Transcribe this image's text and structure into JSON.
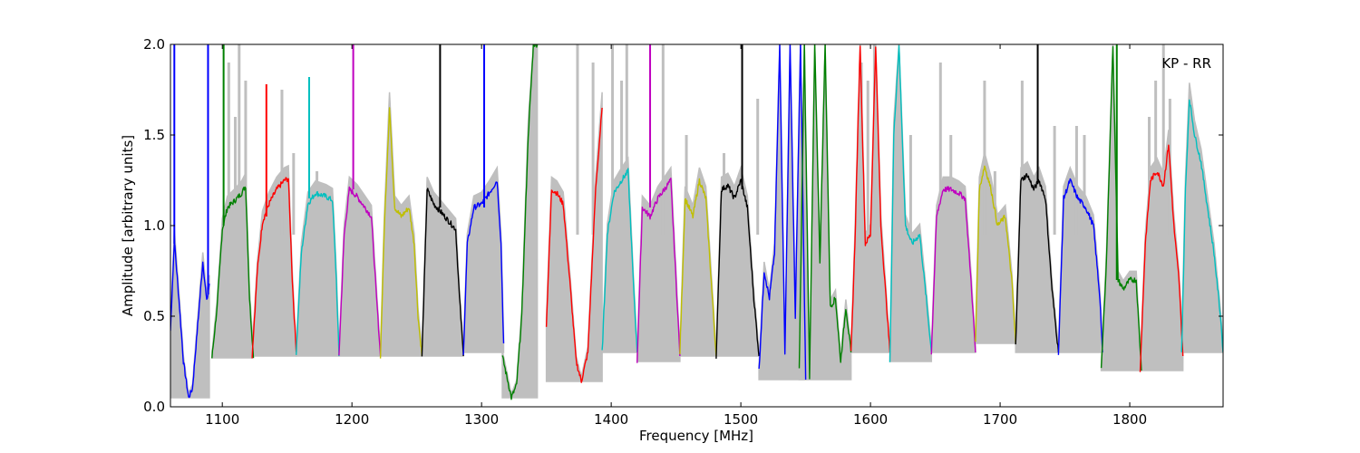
{
  "chart_data": {
    "type": "line",
    "title": "",
    "xlabel": "Frequency [MHz]",
    "ylabel": "Amplitude [arbitrary units]",
    "annotation": "KP - RR",
    "xlim": [
      1060,
      1872
    ],
    "ylim": [
      0.0,
      2.0
    ],
    "xticks": [
      1100,
      1200,
      1300,
      1400,
      1500,
      1600,
      1700,
      1800
    ],
    "xtick_labels": [
      "1100",
      "1200",
      "1300",
      "1400",
      "1500",
      "1600",
      "1700",
      "1800"
    ],
    "yticks": [
      0.0,
      0.5,
      1.0,
      1.5,
      2.0
    ],
    "ytick_labels": [
      "0.0",
      "0.5",
      "1.0",
      "1.5",
      "2.0"
    ],
    "grid": false,
    "legend": "none",
    "background_series_color": "#bfbfbf",
    "subbands": [
      {
        "x": [
          1060,
          1063,
          1067,
          1070,
          1074,
          1077,
          1081,
          1085,
          1088,
          1090
        ],
        "y": [
          0.42,
          0.92,
          0.55,
          0.25,
          0.05,
          0.1,
          0.45,
          0.8,
          0.58,
          0.68
        ],
        "color": "#0000ff"
      },
      {
        "x": [
          1092,
          1096,
          1100,
          1104,
          1110,
          1115,
          1118,
          1121,
          1124
        ],
        "y": [
          0.27,
          0.55,
          0.98,
          1.1,
          1.14,
          1.18,
          1.22,
          0.6,
          0.27
        ],
        "color": "#008000"
      },
      {
        "x": [
          1123,
          1127,
          1131,
          1136,
          1142,
          1148,
          1151,
          1154,
          1157
        ],
        "y": [
          0.28,
          0.75,
          1.02,
          1.12,
          1.2,
          1.25,
          1.26,
          0.7,
          0.3
        ],
        "color": "#ff0000"
      },
      {
        "x": [
          1157,
          1161,
          1166,
          1172,
          1180,
          1185,
          1188,
          1190
        ],
        "y": [
          0.3,
          0.85,
          1.12,
          1.18,
          1.16,
          1.14,
          0.7,
          0.28
        ],
        "color": "#00bfbf"
      },
      {
        "x": [
          1190,
          1194,
          1198,
          1204,
          1210,
          1215,
          1219,
          1222
        ],
        "y": [
          0.28,
          0.95,
          1.2,
          1.16,
          1.1,
          1.05,
          0.6,
          0.28
        ],
        "color": "#bf00bf"
      },
      {
        "x": [
          1222,
          1225,
          1229,
          1233,
          1238,
          1244,
          1248,
          1251,
          1254
        ],
        "y": [
          0.28,
          1.0,
          1.65,
          1.1,
          1.05,
          1.1,
          0.9,
          0.5,
          0.28
        ],
        "color": "#bfbf00"
      },
      {
        "x": [
          1254,
          1258,
          1263,
          1268,
          1274,
          1280,
          1283,
          1286
        ],
        "y": [
          0.28,
          1.2,
          1.12,
          1.08,
          1.03,
          0.98,
          0.6,
          0.28
        ],
        "color": "#000000"
      },
      {
        "x": [
          1286,
          1289,
          1294,
          1300,
          1306,
          1312,
          1315,
          1317
        ],
        "y": [
          0.3,
          0.9,
          1.1,
          1.12,
          1.18,
          1.25,
          0.9,
          0.35
        ],
        "color": "#0000ff"
      },
      {
        "x": [
          1316,
          1320,
          1323,
          1327,
          1331,
          1336,
          1340,
          1343
        ],
        "y": [
          0.28,
          0.15,
          0.05,
          0.12,
          0.5,
          1.5,
          2.0,
          2.0
        ],
        "color": "#008000"
      },
      {
        "x": [
          1350,
          1354,
          1358,
          1363,
          1368,
          1373,
          1377,
          1382,
          1388,
          1393
        ],
        "y": [
          0.45,
          1.2,
          1.18,
          1.12,
          0.7,
          0.25,
          0.14,
          0.3,
          1.2,
          1.65
        ],
        "color": "#ff0000"
      },
      {
        "x": [
          1393,
          1397,
          1402,
          1408,
          1413,
          1417,
          1420
        ],
        "y": [
          0.3,
          0.95,
          1.18,
          1.25,
          1.3,
          0.7,
          0.3
        ],
        "color": "#00bfbf"
      },
      {
        "x": [
          1420,
          1424,
          1430,
          1436,
          1441,
          1446,
          1450,
          1453
        ],
        "y": [
          0.25,
          1.1,
          1.05,
          1.15,
          1.2,
          1.25,
          0.7,
          0.28
        ],
        "color": "#bf00bf"
      },
      {
        "x": [
          1453,
          1457,
          1463,
          1468,
          1473,
          1478,
          1481
        ],
        "y": [
          0.3,
          1.15,
          1.05,
          1.25,
          1.15,
          0.6,
          0.28
        ],
        "color": "#bfbf00"
      },
      {
        "x": [
          1481,
          1485,
          1490,
          1495,
          1500,
          1505,
          1510,
          1514
        ],
        "y": [
          0.28,
          1.2,
          1.22,
          1.15,
          1.25,
          1.1,
          0.6,
          0.28
        ],
        "color": "#000000"
      },
      {
        "x": [
          1514,
          1518,
          1522,
          1526,
          1530,
          1534,
          1538,
          1542,
          1546,
          1550
        ],
        "y": [
          0.2,
          0.75,
          0.6,
          0.85,
          2.0,
          0.3,
          2.0,
          0.5,
          2.0,
          0.15
        ],
        "color": "#0000ff"
      },
      {
        "x": [
          1545,
          1549,
          1553,
          1557,
          1561,
          1565,
          1569,
          1573,
          1577,
          1581,
          1585
        ],
        "y": [
          0.2,
          2.0,
          0.15,
          2.0,
          0.8,
          2.0,
          0.55,
          0.6,
          0.25,
          0.55,
          0.3
        ],
        "color": "#008000"
      },
      {
        "x": [
          1585,
          1588,
          1592,
          1596,
          1600,
          1604,
          1608,
          1612,
          1615
        ],
        "y": [
          0.3,
          0.9,
          2.0,
          0.9,
          0.95,
          2.0,
          1.0,
          0.6,
          0.3
        ],
        "color": "#ff0000"
      },
      {
        "x": [
          1615,
          1618,
          1622,
          1627,
          1632,
          1638,
          1643,
          1647
        ],
        "y": [
          0.25,
          1.5,
          2.0,
          1.0,
          0.9,
          0.95,
          0.6,
          0.3
        ],
        "color": "#00bfbf"
      },
      {
        "x": [
          1647,
          1651,
          1656,
          1662,
          1668,
          1673,
          1678,
          1681
        ],
        "y": [
          0.3,
          1.05,
          1.2,
          1.2,
          1.18,
          1.15,
          0.65,
          0.3
        ],
        "color": "#bf00bf"
      },
      {
        "x": [
          1681,
          1684,
          1688,
          1693,
          1698,
          1704,
          1709,
          1712
        ],
        "y": [
          0.35,
          1.2,
          1.33,
          1.2,
          1.0,
          1.05,
          0.7,
          0.35
        ],
        "color": "#bfbf00"
      },
      {
        "x": [
          1712,
          1716,
          1721,
          1726,
          1730,
          1735,
          1740,
          1745
        ],
        "y": [
          0.34,
          1.25,
          1.28,
          1.2,
          1.25,
          1.15,
          0.65,
          0.3
        ],
        "color": "#000000"
      },
      {
        "x": [
          1745,
          1749,
          1754,
          1760,
          1766,
          1772,
          1777,
          1779
        ],
        "y": [
          0.3,
          1.15,
          1.25,
          1.15,
          1.1,
          1.0,
          0.6,
          0.3
        ],
        "color": "#0000ff"
      },
      {
        "x": [
          1778,
          1782,
          1787,
          1791,
          1795,
          1800,
          1805,
          1809
        ],
        "y": [
          0.2,
          0.8,
          2.0,
          0.7,
          0.65,
          0.7,
          0.7,
          0.2
        ],
        "color": "#008000"
      },
      {
        "x": [
          1808,
          1812,
          1816,
          1821,
          1826,
          1830,
          1834,
          1838,
          1841
        ],
        "y": [
          0.2,
          0.9,
          1.25,
          1.3,
          1.22,
          1.45,
          1.0,
          0.7,
          0.28
        ],
        "color": "#ff0000"
      },
      {
        "x": [
          1840,
          1843,
          1846,
          1850,
          1855,
          1860,
          1865,
          1870,
          1872
        ],
        "y": [
          0.3,
          1.2,
          1.7,
          1.5,
          1.35,
          1.1,
          0.85,
          0.5,
          0.3
        ],
        "color": "#00bfbf"
      }
    ],
    "spikes": [
      {
        "x": 1063,
        "y0": 0.9,
        "y1": 2.0,
        "color": "#0000ff"
      },
      {
        "x": 1089,
        "y0": 0.62,
        "y1": 2.0,
        "color": "#0000ff"
      },
      {
        "x": 1101,
        "y0": 1.0,
        "y1": 2.0,
        "color": "#008000"
      },
      {
        "x": 1134,
        "y0": 1.05,
        "y1": 1.78,
        "color": "#ff0000"
      },
      {
        "x": 1167,
        "y0": 1.15,
        "y1": 1.82,
        "color": "#00bfbf"
      },
      {
        "x": 1201,
        "y0": 1.2,
        "y1": 2.0,
        "color": "#bf00bf"
      },
      {
        "x": 1268,
        "y0": 1.1,
        "y1": 2.0,
        "color": "#000000"
      },
      {
        "x": 1302,
        "y0": 1.1,
        "y1": 2.0,
        "color": "#0000ff"
      },
      {
        "x": 1430,
        "y0": 1.1,
        "y1": 2.0,
        "color": "#bf00bf"
      },
      {
        "x": 1501,
        "y0": 1.2,
        "y1": 2.0,
        "color": "#000000"
      },
      {
        "x": 1729,
        "y0": 1.25,
        "y1": 2.0,
        "color": "#000000"
      },
      {
        "x": 1790,
        "y0": 0.7,
        "y1": 2.0,
        "color": "#008000"
      }
    ],
    "background_spikes": [
      {
        "x": 1105,
        "y": 1.9
      },
      {
        "x": 1110,
        "y": 1.6
      },
      {
        "x": 1113,
        "y": 2.0
      },
      {
        "x": 1118,
        "y": 1.8
      },
      {
        "x": 1146,
        "y": 1.75
      },
      {
        "x": 1155,
        "y": 1.4
      },
      {
        "x": 1173,
        "y": 1.3
      },
      {
        "x": 1374,
        "y": 2.0
      },
      {
        "x": 1386,
        "y": 1.9
      },
      {
        "x": 1401,
        "y": 2.0
      },
      {
        "x": 1408,
        "y": 1.8
      },
      {
        "x": 1412,
        "y": 2.0
      },
      {
        "x": 1440,
        "y": 2.0
      },
      {
        "x": 1458,
        "y": 1.5
      },
      {
        "x": 1487,
        "y": 1.4
      },
      {
        "x": 1513,
        "y": 1.7
      },
      {
        "x": 1593,
        "y": 1.9
      },
      {
        "x": 1598,
        "y": 1.8
      },
      {
        "x": 1603,
        "y": 2.0
      },
      {
        "x": 1622,
        "y": 1.7
      },
      {
        "x": 1631,
        "y": 1.5
      },
      {
        "x": 1654,
        "y": 1.9
      },
      {
        "x": 1662,
        "y": 1.5
      },
      {
        "x": 1688,
        "y": 1.8
      },
      {
        "x": 1696,
        "y": 1.3
      },
      {
        "x": 1717,
        "y": 1.8
      },
      {
        "x": 1742,
        "y": 1.55
      },
      {
        "x": 1759,
        "y": 1.55
      },
      {
        "x": 1765,
        "y": 1.5
      },
      {
        "x": 1815,
        "y": 1.6
      },
      {
        "x": 1820,
        "y": 1.8
      },
      {
        "x": 1826,
        "y": 2.0
      },
      {
        "x": 1831,
        "y": 1.7
      }
    ]
  }
}
